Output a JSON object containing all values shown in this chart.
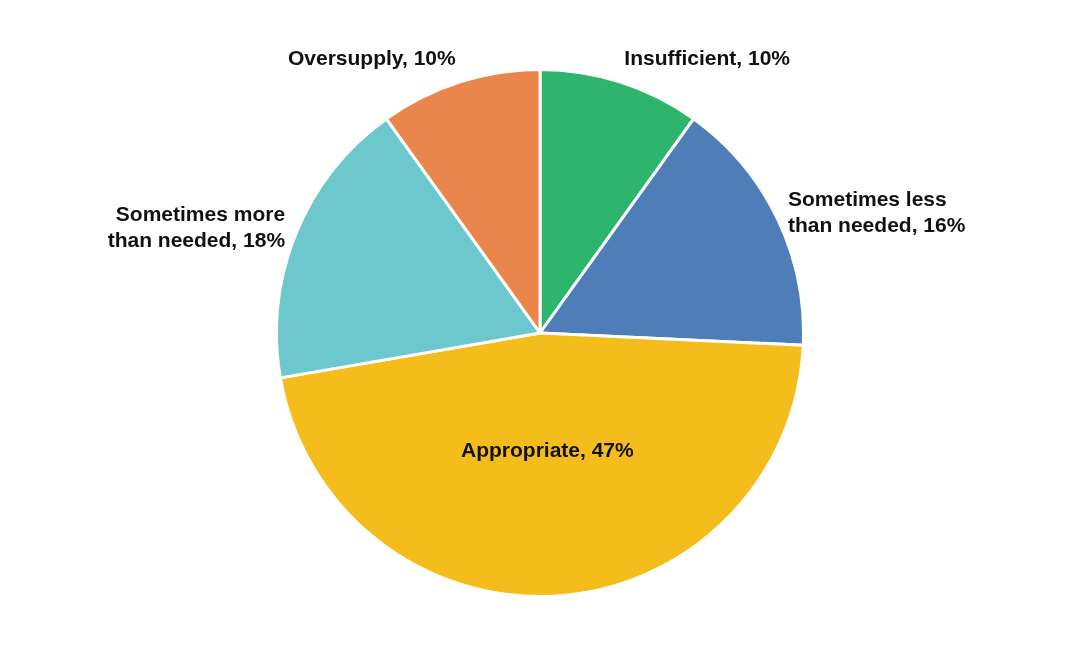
{
  "chart_data": {
    "type": "pie",
    "categories": [
      "Insufficient",
      "Sometimes less than needed",
      "Appropriate",
      "Sometimes more than needed",
      "Oversupply"
    ],
    "values": [
      10,
      16,
      47,
      18,
      10
    ],
    "value_labels": [
      "10%",
      "16%",
      "47%",
      "18%",
      "10%"
    ],
    "colors": [
      "#2db56e",
      "#4f7db8",
      "#f5bd1b",
      "#6cc8cc",
      "#ea854c"
    ],
    "legend": false
  }
}
